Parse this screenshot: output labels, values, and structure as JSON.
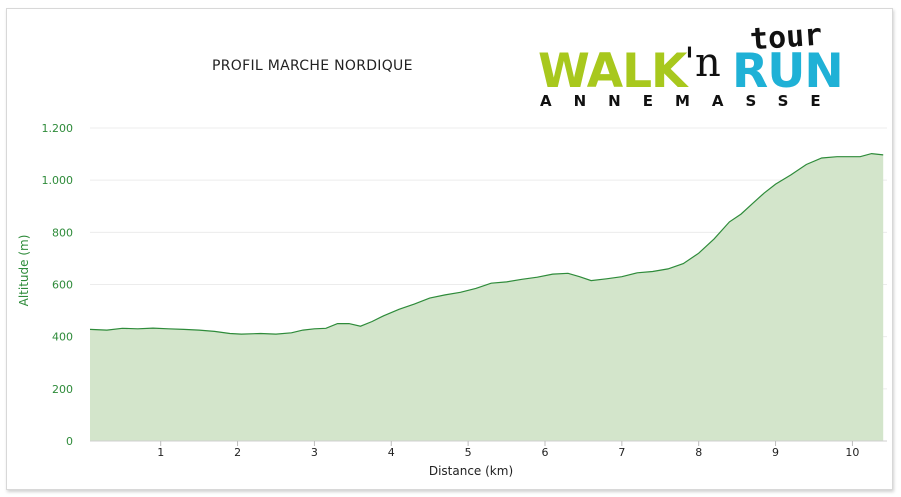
{
  "title": "PROFIL MARCHE NORDIQUE",
  "logo": {
    "walk": "WALK",
    "apostrophe_n": "'n",
    "run": "RUN",
    "tour": "tour",
    "city": "ANNEMASSE",
    "colors": {
      "walk": "#a8c81d",
      "run": "#1fb1d6",
      "text": "#111111"
    }
  },
  "colors": {
    "area_fill": "#d3e5cb",
    "line": "#2e8b3a",
    "tick_green": "#2e8b3a",
    "grid": "#ececec"
  },
  "chart_data": {
    "type": "area",
    "title": "PROFIL MARCHE NORDIQUE",
    "xlabel": "Distance (km)",
    "ylabel": "Altitude (m)",
    "xlim": [
      0.08,
      10.45
    ],
    "ylim": [
      0,
      1200
    ],
    "grid": true,
    "legend": "none",
    "x_ticks": [
      1,
      2,
      3,
      4,
      5,
      6,
      7,
      8,
      9,
      10
    ],
    "y_ticks": [
      0,
      200,
      400,
      600,
      800,
      1000,
      1200
    ],
    "y_tick_labels": [
      "0",
      "200",
      "400",
      "600",
      "800",
      "1.000",
      "1.200"
    ],
    "series": [
      {
        "x": [
          0.08,
          0.3,
          0.5,
          0.7,
          0.9,
          1.1,
          1.3,
          1.5,
          1.7,
          1.9,
          2.05,
          2.3,
          2.5,
          2.7,
          2.85,
          3.0,
          3.15,
          3.3,
          3.45,
          3.6,
          3.75,
          3.9,
          4.1,
          4.3,
          4.5,
          4.7,
          4.9,
          5.1,
          5.3,
          5.5,
          5.7,
          5.9,
          6.1,
          6.3,
          6.45,
          6.6,
          6.8,
          7.0,
          7.2,
          7.4,
          7.6,
          7.8,
          8.0,
          8.2,
          8.4,
          8.55,
          8.7,
          8.85,
          9.0,
          9.2,
          9.4,
          9.6,
          9.8,
          10.0,
          10.1,
          10.25,
          10.4
        ],
        "y": [
          428,
          425,
          432,
          430,
          433,
          430,
          428,
          425,
          420,
          412,
          410,
          412,
          410,
          415,
          425,
          430,
          432,
          450,
          450,
          440,
          458,
          480,
          505,
          525,
          548,
          560,
          570,
          585,
          605,
          610,
          620,
          628,
          640,
          643,
          630,
          615,
          622,
          630,
          645,
          650,
          660,
          680,
          720,
          775,
          840,
          870,
          910,
          950,
          985,
          1020,
          1060,
          1085,
          1090,
          1090,
          1090,
          1102,
          1097
        ]
      }
    ]
  }
}
